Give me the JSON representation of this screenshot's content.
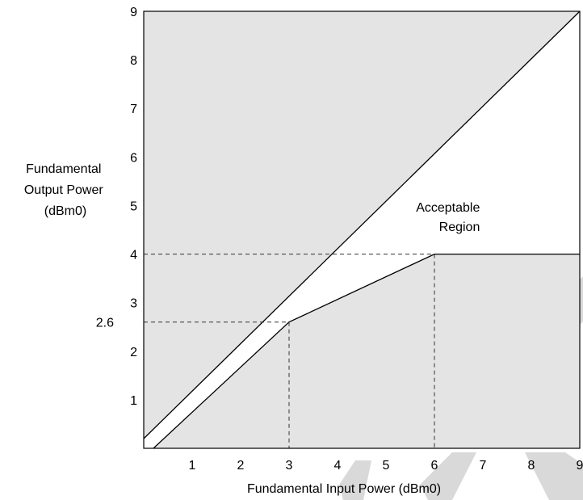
{
  "chart_data": {
    "type": "line",
    "title": "",
    "xlabel": "Fundamental Input Power (dBm0)",
    "ylabel_lines": [
      "Fundamental",
      "Output Power",
      "(dBm0)"
    ],
    "xlim": [
      0,
      9
    ],
    "ylim": [
      0,
      9
    ],
    "x_ticks": [
      "1",
      "2",
      "3",
      "4",
      "5",
      "6",
      "7",
      "8",
      "9"
    ],
    "y_ticks": [
      "1",
      "2",
      "3",
      "4",
      "5",
      "6",
      "7",
      "8",
      "9"
    ],
    "extra_y_tick": "2.6",
    "grid": false,
    "series": [
      {
        "role": "upper-boundary",
        "points": [
          [
            0,
            0.2
          ],
          [
            9,
            9
          ]
        ]
      },
      {
        "role": "lower-boundary",
        "points": [
          [
            0.2,
            0
          ],
          [
            3,
            2.6
          ],
          [
            6,
            4
          ],
          [
            9,
            4
          ]
        ]
      }
    ],
    "reference_lines": [
      {
        "style": "dashed",
        "points": [
          [
            0,
            4
          ],
          [
            6,
            4
          ],
          [
            6,
            0
          ]
        ]
      },
      {
        "style": "dashed",
        "points": [
          [
            0,
            2.6
          ],
          [
            3,
            2.6
          ],
          [
            3,
            0
          ]
        ]
      }
    ],
    "shaded_color": "#e4e4e4",
    "annotations": [
      {
        "lines": [
          "Acceptable",
          "Region"
        ],
        "x": 6.3,
        "y": 5
      }
    ]
  }
}
